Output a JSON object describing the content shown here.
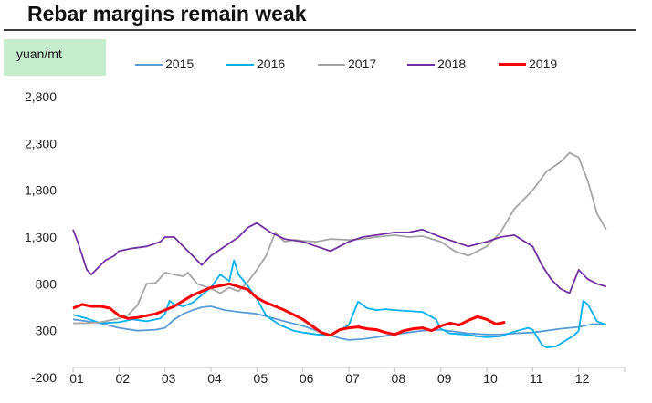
{
  "title": "Rebar margins remain weak",
  "colors": {
    "2015": "#5b9bd5",
    "2016": "#00b0f0",
    "2017": "#a5a5a5",
    "2018": "#7030a0",
    "2019": "#ff0000",
    "unit_box": "#c6eece",
    "title_rule": "#3c3c3c"
  },
  "chart_data": {
    "type": "line",
    "title": "Rebar margins remain weak",
    "ylabel": "yuan/mt",
    "xlabel": "",
    "ylim": [
      -200,
      2800
    ],
    "yticks": [
      -200,
      300,
      800,
      1300,
      1800,
      2300,
      2800
    ],
    "ytick_labels": [
      "-200",
      "300",
      "800",
      "1,300",
      "1,800",
      "2,300",
      "2,800"
    ],
    "categories": [
      "01",
      "02",
      "03",
      "04",
      "05",
      "06",
      "07",
      "08",
      "09",
      "10",
      "11",
      "12"
    ],
    "x_note": "x = month position (1.0 = start of January, 13.0 = end of December); values approximate",
    "grid": false,
    "legend_position": "top",
    "series": [
      {
        "name": "2015",
        "x": [
          1.0,
          1.3,
          1.6,
          2.0,
          2.4,
          2.8,
          3.0,
          3.2,
          3.4,
          3.6,
          3.8,
          4.0,
          4.3,
          4.6,
          5.0,
          5.3,
          5.6,
          6.0,
          6.3,
          6.6,
          6.8,
          7.0,
          7.3,
          7.6,
          8.0,
          8.3,
          8.6,
          9.0,
          9.3,
          9.6,
          10.0,
          10.3,
          10.6,
          11.0,
          11.3,
          11.6,
          12.0,
          12.3,
          12.6
        ],
        "y": [
          420,
          400,
          380,
          330,
          300,
          310,
          330,
          420,
          480,
          520,
          550,
          560,
          520,
          500,
          480,
          440,
          400,
          350,
          300,
          250,
          220,
          200,
          210,
          230,
          260,
          280,
          300,
          310,
          290,
          270,
          260,
          260,
          270,
          280,
          300,
          320,
          340,
          370,
          370
        ]
      },
      {
        "name": "2016",
        "x": [
          1.0,
          1.3,
          1.6,
          2.0,
          2.3,
          2.6,
          2.9,
          3.0,
          3.1,
          3.2,
          3.4,
          3.6,
          3.8,
          4.0,
          4.2,
          4.4,
          4.5,
          4.6,
          4.8,
          5.0,
          5.2,
          5.5,
          5.8,
          6.0,
          6.3,
          6.6,
          7.0,
          7.2,
          7.4,
          7.6,
          7.8,
          8.0,
          8.3,
          8.6,
          8.9,
          9.0,
          9.2,
          9.5,
          9.8,
          10.0,
          10.3,
          10.6,
          10.9,
          11.0,
          11.2,
          11.3,
          11.5,
          11.7,
          11.9,
          12.0,
          12.1,
          12.2,
          12.4,
          12.6
        ],
        "y": [
          470,
          430,
          380,
          390,
          420,
          400,
          430,
          480,
          620,
          580,
          560,
          600,
          680,
          760,
          900,
          830,
          1050,
          900,
          780,
          640,
          460,
          360,
          300,
          280,
          260,
          250,
          360,
          610,
          540,
          520,
          530,
          520,
          510,
          500,
          420,
          320,
          270,
          260,
          240,
          230,
          240,
          290,
          330,
          310,
          150,
          120,
          130,
          190,
          250,
          300,
          620,
          580,
          400,
          360
        ]
      },
      {
        "name": "2017",
        "x": [
          1.0,
          1.3,
          1.6,
          2.0,
          2.2,
          2.4,
          2.6,
          2.8,
          3.0,
          3.2,
          3.4,
          3.5,
          3.7,
          4.0,
          4.2,
          4.4,
          4.6,
          4.8,
          5.0,
          5.2,
          5.4,
          5.6,
          5.8,
          6.0,
          6.3,
          6.6,
          7.0,
          7.3,
          7.6,
          8.0,
          8.3,
          8.6,
          9.0,
          9.3,
          9.6,
          10.0,
          10.3,
          10.6,
          11.0,
          11.3,
          11.6,
          11.8,
          12.0,
          12.2,
          12.4,
          12.6
        ],
        "y": [
          380,
          380,
          390,
          430,
          470,
          570,
          800,
          810,
          920,
          900,
          880,
          920,
          800,
          750,
          700,
          760,
          720,
          820,
          950,
          1100,
          1350,
          1250,
          1270,
          1260,
          1250,
          1280,
          1270,
          1280,
          1300,
          1320,
          1300,
          1310,
          1250,
          1150,
          1100,
          1200,
          1350,
          1600,
          1800,
          2000,
          2100,
          2200,
          2150,
          1900,
          1550,
          1380
        ]
      },
      {
        "name": "2018",
        "x": [
          1.0,
          1.1,
          1.2,
          1.3,
          1.4,
          1.5,
          1.7,
          1.9,
          2.0,
          2.3,
          2.6,
          2.9,
          3.0,
          3.2,
          3.4,
          3.6,
          3.8,
          4.0,
          4.3,
          4.6,
          4.8,
          5.0,
          5.3,
          5.6,
          6.0,
          6.3,
          6.6,
          7.0,
          7.3,
          7.6,
          8.0,
          8.3,
          8.6,
          9.0,
          9.3,
          9.6,
          10.0,
          10.3,
          10.6,
          11.0,
          11.2,
          11.4,
          11.6,
          11.8,
          12.0,
          12.2,
          12.4,
          12.6
        ],
        "y": [
          1380,
          1250,
          1100,
          950,
          900,
          950,
          1050,
          1100,
          1150,
          1180,
          1200,
          1250,
          1300,
          1300,
          1200,
          1100,
          1000,
          1100,
          1200,
          1300,
          1400,
          1450,
          1350,
          1280,
          1250,
          1200,
          1150,
          1250,
          1300,
          1320,
          1350,
          1350,
          1380,
          1300,
          1250,
          1200,
          1250,
          1300,
          1320,
          1200,
          1000,
          850,
          750,
          700,
          950,
          850,
          800,
          770
        ]
      },
      {
        "name": "2019",
        "x": [
          1.0,
          1.2,
          1.4,
          1.6,
          1.8,
          2.0,
          2.2,
          2.4,
          2.6,
          2.8,
          3.0,
          3.2,
          3.4,
          3.6,
          3.8,
          4.0,
          4.2,
          4.4,
          4.6,
          4.8,
          5.0,
          5.2,
          5.4,
          5.6,
          5.8,
          6.0,
          6.2,
          6.4,
          6.6,
          6.8,
          7.0,
          7.2,
          7.4,
          7.6,
          7.8,
          8.0,
          8.2,
          8.4,
          8.6,
          8.8,
          9.0,
          9.2,
          9.4,
          9.6,
          9.8,
          10.0,
          10.2,
          10.4
        ],
        "y": [
          540,
          580,
          560,
          560,
          540,
          460,
          430,
          440,
          460,
          480,
          520,
          560,
          620,
          680,
          720,
          760,
          780,
          800,
          770,
          740,
          650,
          600,
          560,
          520,
          470,
          420,
          350,
          280,
          250,
          310,
          330,
          340,
          320,
          310,
          280,
          260,
          300,
          320,
          330,
          300,
          350,
          380,
          360,
          410,
          450,
          420,
          370,
          390
        ]
      }
    ]
  }
}
